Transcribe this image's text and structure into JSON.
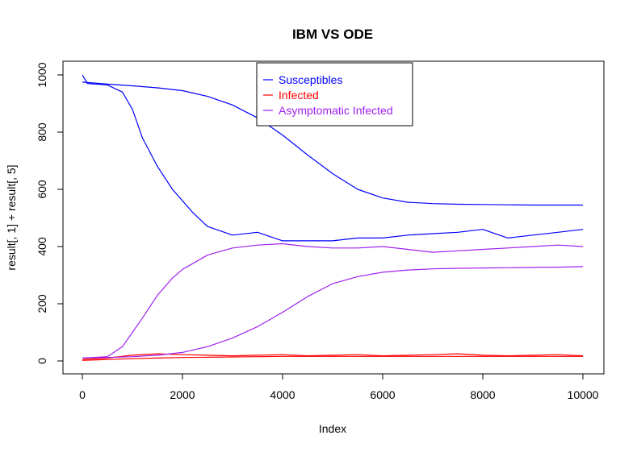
{
  "chart_data": {
    "type": "line",
    "title": "IBM VS ODE",
    "xlabel": "Index",
    "ylabel": "result[, 1] + result[, 5]",
    "xlim": [
      0,
      10000
    ],
    "ylim": [
      0,
      1000
    ],
    "x_ticks": [
      "0",
      "2000",
      "4000",
      "6000",
      "8000",
      "10000"
    ],
    "y_ticks": [
      "0",
      "200",
      "400",
      "600",
      "800",
      "1000"
    ],
    "grid": false,
    "legend_position": "top-center",
    "legend": [
      {
        "label": "Susceptibles",
        "color": "#0000ff"
      },
      {
        "label": "Infected",
        "color": "#ff0000"
      },
      {
        "label": "Asymptomatic Infected",
        "color": "#a020f0"
      }
    ],
    "series": [
      {
        "name": "Susceptibles",
        "color": "#0000ff",
        "x": [
          0,
          100,
          500,
          800,
          1000,
          1200,
          1500,
          1800,
          2000,
          2200,
          2500,
          3000,
          3500,
          4000,
          4500,
          5000,
          5500,
          6000,
          6500,
          7000,
          7500,
          8000,
          8500,
          9000,
          9500,
          10000
        ],
        "values": [
          1000,
          970,
          965,
          940,
          880,
          780,
          680,
          600,
          560,
          520,
          470,
          440,
          450,
          420,
          420,
          420,
          430,
          430,
          440,
          445,
          450,
          460,
          430,
          440,
          450,
          460
        ]
      },
      {
        "name": "Susceptibles",
        "color": "#0000ff",
        "x": [
          0,
          500,
          1000,
          1500,
          2000,
          2500,
          3000,
          3500,
          4000,
          4500,
          5000,
          5500,
          6000,
          6500,
          7000,
          7500,
          8000,
          8500,
          9000,
          9500,
          10000
        ],
        "values": [
          975,
          968,
          962,
          955,
          945,
          925,
          895,
          850,
          790,
          720,
          655,
          600,
          570,
          555,
          550,
          548,
          547,
          546,
          545,
          545,
          545
        ]
      },
      {
        "name": "Infected",
        "color": "#ff0000",
        "x": [
          0,
          500,
          1000,
          1500,
          2000,
          2500,
          3000,
          3500,
          4000,
          4500,
          5000,
          5500,
          6000,
          6500,
          7000,
          7500,
          8000,
          8500,
          9000,
          9500,
          10000
        ],
        "values": [
          5,
          10,
          20,
          25,
          22,
          20,
          18,
          20,
          22,
          18,
          20,
          22,
          18,
          20,
          22,
          25,
          20,
          18,
          20,
          22,
          18
        ]
      },
      {
        "name": "Infected",
        "color": "#ff0000",
        "x": [
          0,
          500,
          1000,
          1500,
          2000,
          2500,
          3000,
          3500,
          4000,
          4500,
          5000,
          5500,
          6000,
          6500,
          7000,
          7500,
          8000,
          8500,
          9000,
          9500,
          10000
        ],
        "values": [
          2,
          5,
          8,
          10,
          12,
          13,
          14,
          15,
          16,
          16,
          16,
          16,
          16,
          16,
          16,
          16,
          16,
          16,
          16,
          16,
          16
        ]
      },
      {
        "name": "Asymptomatic Infected",
        "color": "#a020f0",
        "x": [
          0,
          500,
          800,
          1000,
          1200,
          1500,
          1800,
          2000,
          2200,
          2500,
          3000,
          3500,
          4000,
          4500,
          5000,
          5500,
          6000,
          6500,
          7000,
          7500,
          8000,
          8500,
          9000,
          9500,
          10000
        ],
        "values": [
          10,
          15,
          50,
          100,
          150,
          230,
          290,
          320,
          340,
          370,
          395,
          405,
          410,
          400,
          395,
          395,
          400,
          390,
          380,
          385,
          390,
          395,
          400,
          405,
          400
        ]
      },
      {
        "name": "Asymptomatic Infected",
        "color": "#a020f0",
        "x": [
          0,
          500,
          1000,
          1500,
          2000,
          2500,
          3000,
          3500,
          4000,
          4500,
          5000,
          5500,
          6000,
          6500,
          7000,
          7500,
          8000,
          8500,
          9000,
          9500,
          10000
        ],
        "values": [
          10,
          12,
          15,
          20,
          30,
          50,
          80,
          120,
          170,
          225,
          270,
          295,
          310,
          318,
          322,
          324,
          325,
          326,
          327,
          328,
          330
        ]
      }
    ]
  }
}
